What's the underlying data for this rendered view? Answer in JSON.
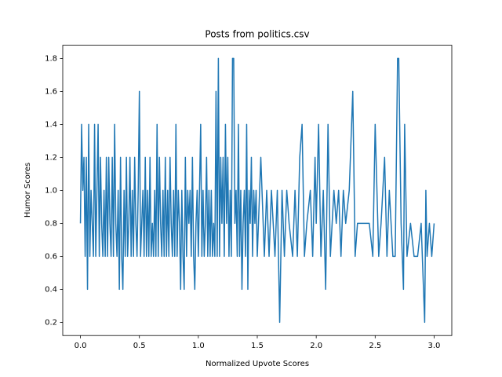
{
  "chart_data": {
    "type": "line",
    "title": "Posts from politics.csv",
    "x_label": "Normalized Upvote Scores",
    "y_label": "Humor Scores",
    "xlim": [
      -0.15,
      3.15
    ],
    "ylim": [
      0.12,
      1.88
    ],
    "xticks": [
      {
        "value": 0,
        "label": "0.0"
      },
      0.5,
      {
        "value": 1,
        "label": "1.0"
      },
      1.5,
      {
        "value": 2,
        "label": "2.0"
      },
      2.5,
      {
        "value": 3,
        "label": "3.0"
      }
    ],
    "yticks": [
      0.2,
      0.4,
      0.6,
      0.8,
      {
        "value": 1,
        "label": "1.0"
      },
      1.2,
      1.4,
      1.6,
      1.8
    ],
    "series": [
      {
        "color": "#1f77b4",
        "x": [
          0,
          0.01,
          0.02,
          0.03,
          0.04,
          0.05,
          0.06,
          0.07,
          0.08,
          0.09,
          0.1,
          0.11,
          0.12,
          0.13,
          0.14,
          0.15,
          0.16,
          0.17,
          0.18,
          0.19,
          0.2,
          0.21,
          0.22,
          0.23,
          0.24,
          0.25,
          0.26,
          0.27,
          0.28,
          0.29,
          0.3,
          0.31,
          0.32,
          0.33,
          0.34,
          0.35,
          0.36,
          0.37,
          0.38,
          0.39,
          0.4,
          0.41,
          0.42,
          0.43,
          0.44,
          0.45,
          0.46,
          0.47,
          0.48,
          0.49,
          0.5,
          0.51,
          0.52,
          0.53,
          0.54,
          0.55,
          0.56,
          0.57,
          0.58,
          0.59,
          0.6,
          0.61,
          0.62,
          0.63,
          0.64,
          0.65,
          0.66,
          0.67,
          0.68,
          0.69,
          0.7,
          0.71,
          0.72,
          0.73,
          0.74,
          0.75,
          0.76,
          0.77,
          0.78,
          0.79,
          0.8,
          0.81,
          0.82,
          0.83,
          0.84,
          0.85,
          0.86,
          0.87,
          0.88,
          0.89,
          0.9,
          0.91,
          0.92,
          0.93,
          0.94,
          0.95,
          0.96,
          0.97,
          0.98,
          0.99,
          1,
          1.01,
          1.02,
          1.03,
          1.04,
          1.05,
          1.06,
          1.07,
          1.08,
          1.09,
          1.1,
          1.11,
          1.12,
          1.13,
          1.14,
          1.15,
          1.16,
          1.17,
          1.18,
          1.19,
          1.2,
          1.21,
          1.22,
          1.23,
          1.24,
          1.25,
          1.26,
          1.27,
          1.28,
          1.29,
          1.3,
          1.31,
          1.32,
          1.33,
          1.34,
          1.35,
          1.36,
          1.37,
          1.38,
          1.39,
          1.4,
          1.41,
          1.42,
          1.43,
          1.44,
          1.45,
          1.46,
          1.47,
          1.48,
          1.49,
          1.5,
          1.53,
          1.56,
          1.58,
          1.6,
          1.62,
          1.65,
          1.67,
          1.69,
          1.71,
          1.73,
          1.75,
          1.77,
          1.8,
          1.82,
          1.84,
          1.86,
          1.88,
          1.9,
          1.92,
          1.95,
          1.97,
          1.99,
          2,
          2.02,
          2.04,
          2.06,
          2.08,
          2.1,
          2.12,
          2.15,
          2.17,
          2.19,
          2.21,
          2.23,
          2.25,
          2.28,
          2.31,
          2.33,
          2.35,
          2.4,
          2.45,
          2.48,
          2.5,
          2.53,
          2.55,
          2.58,
          2.6,
          2.62,
          2.65,
          2.67,
          2.69,
          2.7,
          2.72,
          2.74,
          2.75,
          2.77,
          2.8,
          2.83,
          2.86,
          2.89,
          2.92,
          2.93,
          2.94,
          2.96,
          2.98,
          3
        ],
        "values": [
          0.8,
          1.4,
          1,
          1.2,
          0.6,
          1.2,
          0.4,
          1.4,
          0.6,
          1,
          0.8,
          0.6,
          1.4,
          0.6,
          1,
          1.4,
          0.6,
          1.2,
          0.8,
          0.6,
          1,
          0.6,
          1.2,
          0.6,
          1.2,
          0.8,
          0.6,
          1.2,
          0.6,
          1.4,
          0.8,
          0.6,
          1,
          0.4,
          1.2,
          0.6,
          0.4,
          1,
          0.6,
          1.2,
          0.6,
          0.8,
          1.2,
          0.6,
          1,
          0.6,
          1.2,
          0.8,
          0.6,
          1,
          1.6,
          0.6,
          0.8,
          1,
          0.6,
          1.2,
          0.6,
          1,
          0.6,
          1.2,
          0.6,
          0.8,
          0.6,
          1,
          0.6,
          1.4,
          0.6,
          1.2,
          0.8,
          0.6,
          1,
          0.6,
          1.2,
          0.6,
          1,
          0.6,
          1.2,
          0.8,
          0.6,
          1,
          0.6,
          1.4,
          0.6,
          1,
          0.8,
          0.4,
          1,
          0.6,
          0.4,
          1.2,
          0.6,
          1,
          0.8,
          1,
          0.6,
          1.2,
          0.6,
          0.4,
          0.8,
          1,
          0.6,
          1,
          1.4,
          0.6,
          1,
          0.6,
          0.8,
          1.2,
          0.6,
          1,
          0.6,
          1,
          0.6,
          0.8,
          0.6,
          1.6,
          0.6,
          1.8,
          0.6,
          1.2,
          0.8,
          1.2,
          0.6,
          1.4,
          0.8,
          1.2,
          0.6,
          1,
          0.6,
          1.8,
          1.8,
          0.8,
          1,
          0.6,
          1.4,
          0.6,
          1,
          0.4,
          0.8,
          1,
          0.6,
          1.4,
          0.4,
          1,
          0.8,
          1.2,
          0.6,
          1,
          0.8,
          1,
          0.6,
          1.2,
          0.6,
          1,
          0.6,
          1,
          0.6,
          1,
          0.2,
          1,
          0.6,
          1,
          0.8,
          0.6,
          1,
          0.6,
          1.2,
          1.4,
          0.6,
          0.8,
          1,
          0.6,
          1.2,
          0.8,
          1.4,
          0.6,
          1,
          0.4,
          1.4,
          0.6,
          1,
          0.8,
          1,
          0.6,
          1,
          0.8,
          1,
          1.6,
          0.6,
          0.8,
          0.8,
          0.8,
          0.6,
          1.4,
          0.6,
          0.8,
          1.2,
          0.6,
          1,
          0.6,
          0.6,
          1.8,
          1.8,
          0.8,
          0.4,
          1.4,
          0.6,
          0.8,
          0.6,
          0.6,
          0.8,
          0.2,
          1,
          0.6,
          0.8,
          0.6,
          0.8
        ]
      }
    ]
  }
}
